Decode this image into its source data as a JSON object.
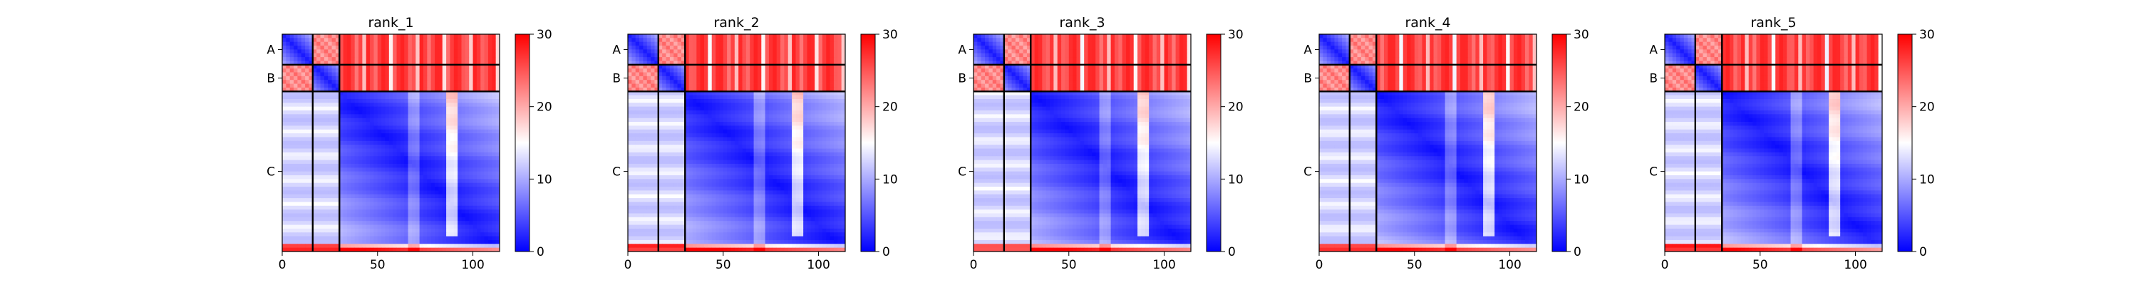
{
  "figure": {
    "background": "#ffffff"
  },
  "chart_data": {
    "type": "heatmap",
    "shared": {
      "colormap": {
        "name": "bwr",
        "low": "#0000ff",
        "mid": "#ffffff",
        "high": "#ff0000"
      },
      "vmin": 0,
      "vmax": 30,
      "colorbar_ticks": [
        "0",
        "10",
        "20",
        "30"
      ],
      "x_ticks": [
        {
          "value": 0,
          "label": "0"
        },
        {
          "value": 50,
          "label": "50"
        },
        {
          "value": 100,
          "label": "100"
        }
      ],
      "xlim": [
        0,
        114
      ],
      "ylim": [
        0,
        114
      ],
      "chains": [
        {
          "label": "A",
          "start": 0,
          "end": 16
        },
        {
          "label": "B",
          "start": 16,
          "end": 30
        },
        {
          "label": "C",
          "start": 30,
          "end": 114
        }
      ],
      "grid": false
    },
    "panels": [
      {
        "title": "rank_1"
      },
      {
        "title": "rank_2"
      },
      {
        "title": "rank_3"
      },
      {
        "title": "rank_4"
      },
      {
        "title": "rank_5"
      }
    ]
  }
}
